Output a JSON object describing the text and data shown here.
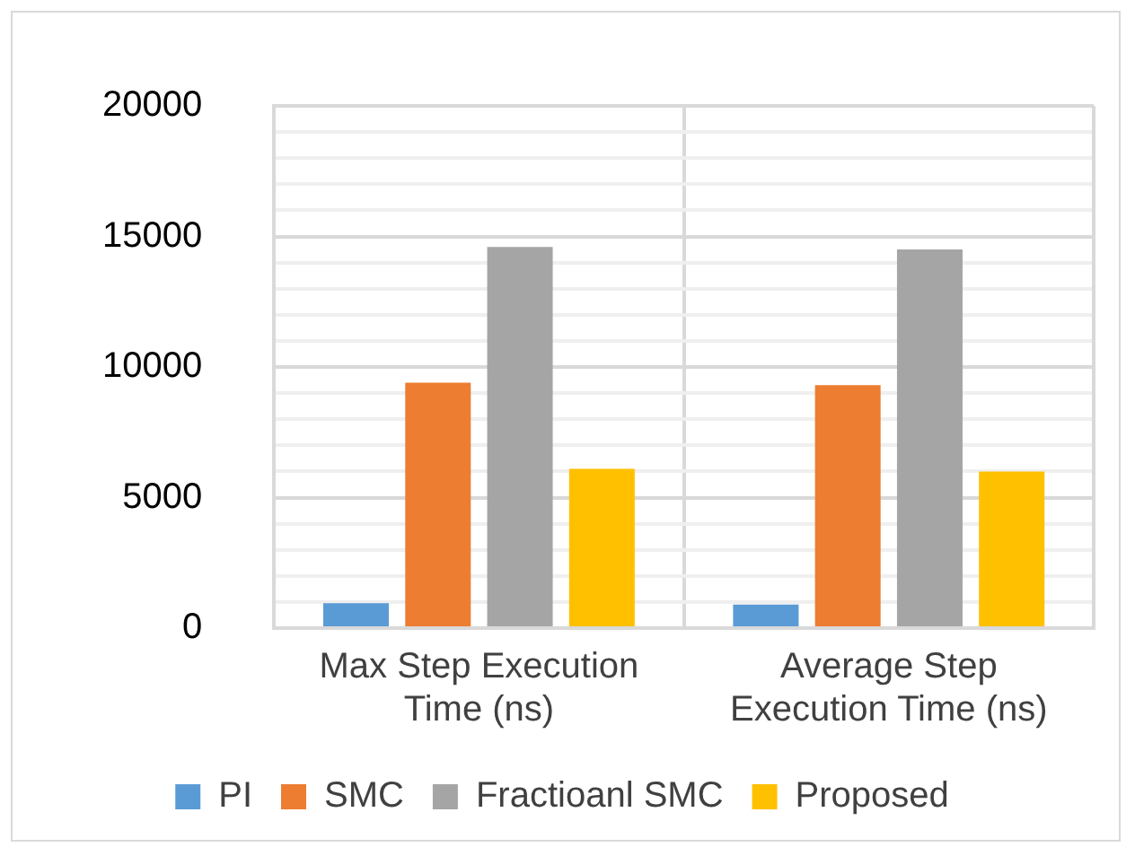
{
  "chart_data": {
    "type": "bar",
    "categories": [
      "Max Step Execution Time (ns)",
      "Average Step Execution Time (ns)"
    ],
    "series": [
      {
        "name": "PI",
        "color": "#5b9bd5",
        "values": [
          950,
          900
        ]
      },
      {
        "name": "SMC",
        "color": "#ed7d31",
        "values": [
          9400,
          9300
        ]
      },
      {
        "name": "Fractioanl SMC",
        "color": "#a5a5a5",
        "values": [
          14600,
          14500
        ]
      },
      {
        "name": "Proposed",
        "color": "#ffc000",
        "values": [
          6100,
          6000
        ]
      }
    ],
    "ylim": [
      0,
      20000
    ],
    "yticks": [
      0,
      {
        "value": 1000,
        "label": null
      },
      {
        "value": 2000,
        "label": null
      },
      {
        "value": 3000,
        "label": null
      },
      {
        "value": 4000,
        "label": null
      },
      5000,
      {
        "value": 6000,
        "label": null
      },
      {
        "value": 7000,
        "label": null
      },
      {
        "value": 8000,
        "label": null
      },
      {
        "value": 9000,
        "label": null
      },
      10000,
      {
        "value": 11000,
        "label": null
      },
      {
        "value": 12000,
        "label": null
      },
      {
        "value": 13000,
        "label": null
      },
      {
        "value": 14000,
        "label": null
      },
      15000,
      {
        "value": 16000,
        "label": null
      },
      {
        "value": 17000,
        "label": null
      },
      {
        "value": 18000,
        "label": null
      },
      {
        "value": 19000,
        "label": null
      },
      20000
    ],
    "grid": true,
    "legend": "bottom"
  }
}
